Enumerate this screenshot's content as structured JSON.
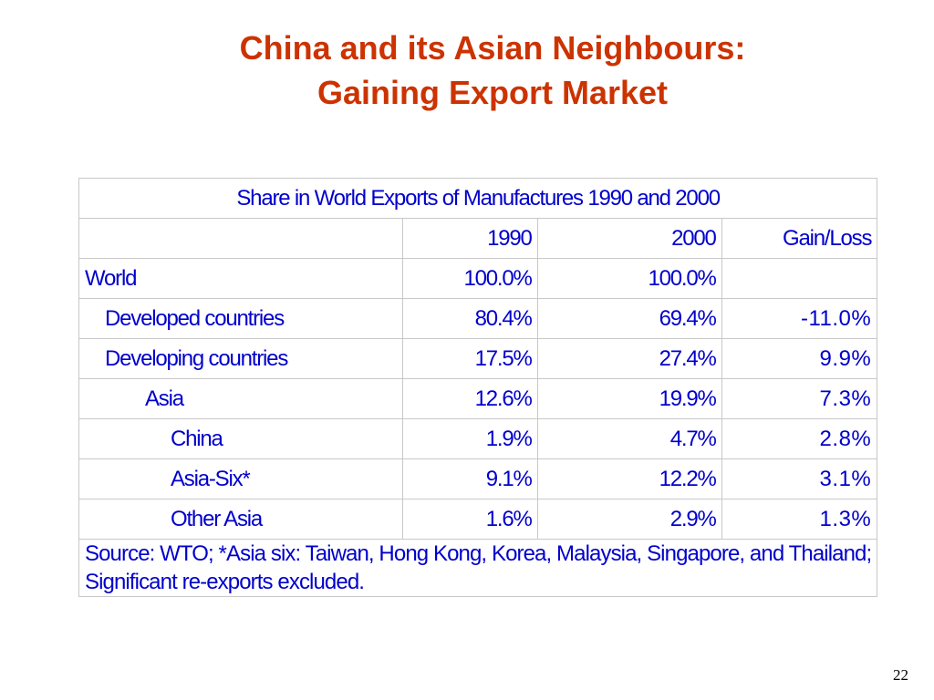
{
  "title": {
    "line1": "China and its Asian Neighbours:",
    "line2": "Gaining Export Market"
  },
  "table": {
    "caption": "Share in World Exports of Manufactures 1990 and 2000",
    "headers": [
      "",
      "1990",
      "2000",
      "Gain/Loss"
    ],
    "rows": [
      {
        "label": "World",
        "v1990": "100.0%",
        "v2000": "100.0%",
        "gain": ""
      },
      {
        "label": "Developed countries",
        "v1990": "80.4%",
        "v2000": "69.4%",
        "gain": "-11.0%"
      },
      {
        "label": "Developing countries",
        "v1990": "17.5%",
        "v2000": "27.4%",
        "gain": "9.9%"
      },
      {
        "label": "Asia",
        "v1990": "12.6%",
        "v2000": "19.9%",
        "gain": "7.3%"
      },
      {
        "label": "China",
        "v1990": "1.9%",
        "v2000": "4.7%",
        "gain": "2.8%"
      },
      {
        "label": "Asia-Six*",
        "v1990": "9.1%",
        "v2000": "12.2%",
        "gain": "3.1%"
      },
      {
        "label": "Other Asia",
        "v1990": "1.6%",
        "v2000": "2.9%",
        "gain": "1.3%"
      }
    ],
    "source_line1": "Source: WTO; *Asia six: Taiwan, Hong Kong, Korea, Malaysia, Singapore, and Thailand;",
    "source_line2": "Significant re-exports excluded."
  },
  "page_number": "22",
  "colors": {
    "title": "#cc3300",
    "caption_header": "#2e8b2e",
    "body_text": "#0000cc"
  }
}
